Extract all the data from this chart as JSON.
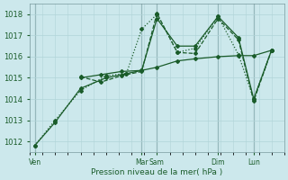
{
  "bg_color": "#cce8ec",
  "grid_color": "#b0d4d8",
  "line_color": "#1a5c2a",
  "title": "Pression niveau de la mer( hPa )",
  "ylabel_ticks": [
    1012,
    1013,
    1014,
    1015,
    1016,
    1017,
    1018
  ],
  "ylim": [
    1011.5,
    1018.5
  ],
  "xlim": [
    0,
    100
  ],
  "day_tick_positions": [
    2,
    44,
    50,
    74,
    88
  ],
  "day_tick_labels": [
    "Ven",
    "Mar",
    "Sam",
    "Dim",
    "Lun"
  ],
  "vline_positions": [
    2,
    44,
    50,
    74,
    88
  ],
  "lines": [
    {
      "x": [
        2,
        10,
        20,
        30,
        38,
        44,
        50,
        58,
        65,
        74,
        82,
        88,
        95
      ],
      "y": [
        1011.8,
        1013.0,
        1014.4,
        1015.1,
        1015.2,
        1017.3,
        1018.0,
        1016.2,
        1016.4,
        1017.9,
        1016.1,
        1014.0,
        1016.3
      ],
      "style": ":",
      "marker": "D",
      "ms": 2,
      "lw": 0.9
    },
    {
      "x": [
        2,
        10,
        20,
        30,
        38,
        44,
        50,
        58,
        65,
        74,
        82,
        88,
        95
      ],
      "y": [
        1011.8,
        1012.9,
        1014.5,
        1015.0,
        1015.2,
        1015.35,
        1015.5,
        1015.8,
        1015.9,
        1016.0,
        1016.05,
        1016.05,
        1016.3
      ],
      "style": "-",
      "marker": "D",
      "ms": 2,
      "lw": 0.9
    },
    {
      "x": [
        20,
        28,
        36,
        44,
        50,
        58,
        65,
        74,
        82,
        88,
        95
      ],
      "y": [
        1015.0,
        1015.15,
        1015.3,
        1015.35,
        1017.8,
        1016.5,
        1016.5,
        1017.9,
        1016.9,
        1014.0,
        1016.3
      ],
      "style": "-",
      "marker": "D",
      "ms": 2,
      "lw": 0.9
    },
    {
      "x": [
        20,
        28,
        36,
        44,
        50,
        58,
        65,
        74,
        82,
        88,
        95
      ],
      "y": [
        1015.05,
        1014.8,
        1015.1,
        1015.3,
        1018.05,
        1016.2,
        1016.15,
        1017.8,
        1016.8,
        1013.9,
        1016.3
      ],
      "style": "--",
      "marker": "D",
      "ms": 2,
      "lw": 0.9
    }
  ]
}
